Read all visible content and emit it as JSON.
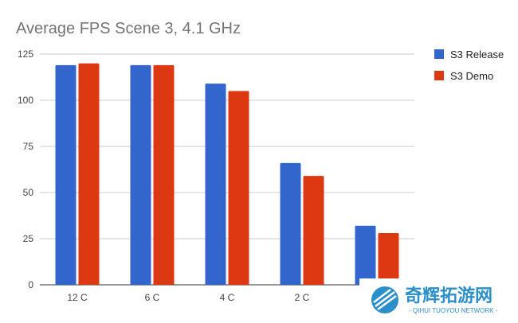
{
  "chart_data": {
    "type": "bar",
    "title": "Average FPS Scene 3, 4.1 GHz",
    "xlabel": "",
    "ylabel": "",
    "categories": [
      "12 C",
      "6 C",
      "4 C",
      "2 C",
      ""
    ],
    "series": [
      {
        "name": "S3 Release",
        "color": "#3366cc",
        "values": [
          119,
          119,
          109,
          66,
          32
        ]
      },
      {
        "name": "S3 Demo",
        "color": "#dc3912",
        "values": [
          120,
          119,
          105,
          59,
          28
        ]
      }
    ],
    "ylim": [
      0,
      125
    ],
    "yticks": [
      0,
      25,
      50,
      75,
      100,
      125
    ],
    "grid": true,
    "legend_position": "right"
  },
  "watermark": {
    "chinese": "奇辉拓游网",
    "english": "- QIHUI TUOYOU NETWORK -"
  }
}
